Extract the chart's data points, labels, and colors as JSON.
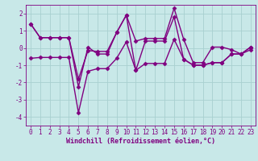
{
  "xlabel": "Windchill (Refroidissement éolien,°C)",
  "hours": [
    0,
    1,
    2,
    3,
    4,
    5,
    6,
    7,
    8,
    9,
    10,
    11,
    12,
    13,
    14,
    15,
    16,
    17,
    18,
    19,
    20,
    21,
    22,
    23
  ],
  "line1": [
    1.4,
    0.6,
    0.6,
    0.6,
    0.6,
    -1.8,
    -0.15,
    -0.2,
    -0.2,
    0.9,
    1.9,
    0.4,
    0.55,
    0.55,
    0.55,
    2.3,
    0.5,
    -0.85,
    -0.85,
    0.05,
    0.05,
    -0.1,
    -0.35,
    0.05
  ],
  "line2": [
    1.4,
    0.6,
    0.6,
    0.6,
    0.6,
    -2.25,
    0.05,
    -0.35,
    -0.35,
    0.9,
    1.9,
    -1.3,
    0.4,
    0.4,
    0.4,
    1.8,
    -0.65,
    -1.0,
    -1.0,
    -0.85,
    -0.85,
    -0.35,
    -0.35,
    0.05
  ],
  "line3": [
    -0.6,
    -0.55,
    -0.55,
    -0.55,
    -0.55,
    -3.75,
    -1.35,
    -1.2,
    -1.2,
    -0.6,
    0.35,
    -1.3,
    -0.9,
    -0.9,
    -0.9,
    0.5,
    -0.65,
    -1.0,
    -1.0,
    -0.85,
    -0.85,
    -0.35,
    -0.35,
    -0.1
  ],
  "bg_color": "#c8e8e8",
  "line_color": "#800080",
  "grid_color": "#a8d0d0",
  "ylim": [
    -4.5,
    2.5
  ],
  "yticks": [
    -4,
    -3,
    -2,
    -1,
    0,
    1,
    2
  ],
  "line_width": 1.0,
  "marker": "D",
  "marker_size": 2.5,
  "tick_fontsize": 5.5,
  "label_fontsize": 6.0
}
